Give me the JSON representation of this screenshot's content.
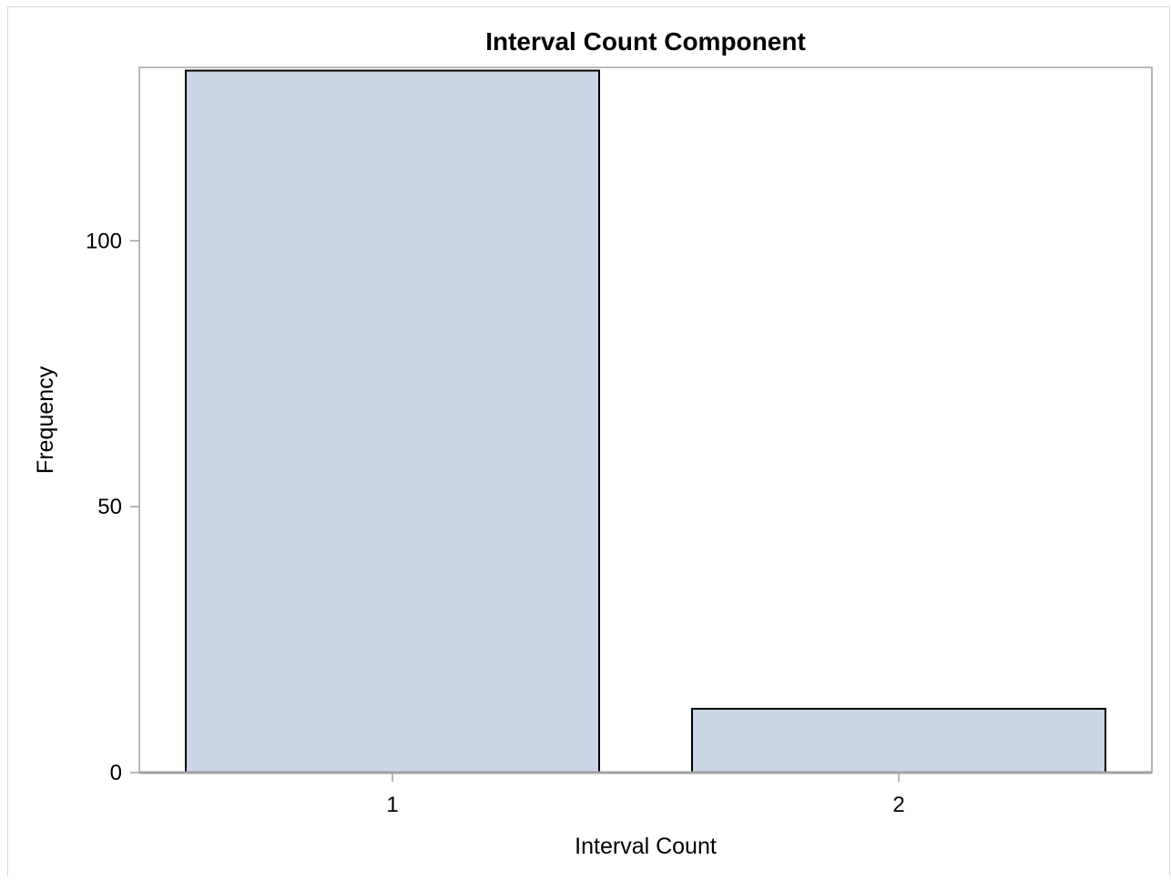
{
  "colors": {
    "background": "#ffffff",
    "outer_border": "#d9d9d9",
    "plot_border": "#a0a0a0",
    "bar_fill": "#cad5e5",
    "bar_stroke": "#000000",
    "baseline": "#a0a0a0",
    "text": "#000000"
  },
  "chart_data": {
    "type": "bar",
    "title": "Interval Count Component",
    "xlabel": "Interval Count",
    "ylabel": "Frequency",
    "categories": [
      "1",
      "2"
    ],
    "values": [
      132,
      12
    ],
    "ylim": [
      0,
      132.6
    ],
    "yticks": [
      0,
      50,
      100
    ],
    "grid": false,
    "legend": "none"
  }
}
